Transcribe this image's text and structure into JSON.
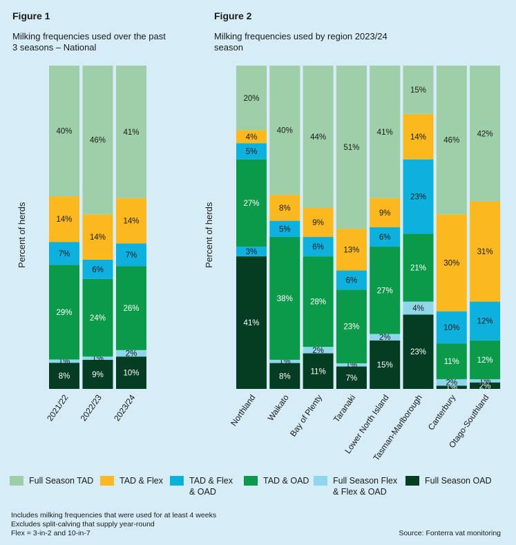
{
  "figure1": {
    "label": "Figure 1",
    "subtitle_line1": "Milking frequencies used over the past",
    "subtitle_line2": "3 seasons – National",
    "ylabel": "Percent of herds"
  },
  "figure2": {
    "label": "Figure 2",
    "subtitle_line1": "Milking frequencies used by region 2023/24",
    "subtitle_line2": "season",
    "ylabel": "Percent of herds"
  },
  "series_colors": {
    "Full Season TAD": "#9ecfa8",
    "TAD & Flex": "#fbb81f",
    "TAD & Flex & OAD": "#0cb1de",
    "TAD & OAD": "#0b9a4a",
    "Full Season Flex & Flex & OAD": "#8fd6ea",
    "Full Season OAD": "#043d22"
  },
  "legend": [
    {
      "key": "Full Season TAD",
      "line1": "Full Season TAD",
      "line2": ""
    },
    {
      "key": "TAD & Flex",
      "line1": "TAD & Flex",
      "line2": ""
    },
    {
      "key": "TAD & Flex & OAD",
      "line1": "TAD & Flex",
      "line2": "& OAD"
    },
    {
      "key": "TAD & OAD",
      "line1": "TAD & OAD",
      "line2": ""
    },
    {
      "key": "Full Season Flex & Flex & OAD",
      "line1": "Full Season Flex",
      "line2": "& Flex & OAD"
    },
    {
      "key": "Full Season OAD",
      "line1": "Full Season OAD",
      "line2": ""
    }
  ],
  "notes": {
    "line1": "Includes milking frequencies that were used for at least 4 weeks",
    "line2": "Excludes split-calving that supply year-round",
    "line3": "Flex = 3-in-2 and 10-in-7"
  },
  "source": "Source: Fonterra vat monitoring",
  "chart_data": [
    {
      "type": "bar",
      "stacked": true,
      "title": "Milking frequencies used over the past 3 seasons – National",
      "xlabel": "",
      "ylabel": "Percent of herds",
      "ylim": [
        0,
        100
      ],
      "categories": [
        "2021/22",
        "2022/23",
        "2023/24"
      ],
      "series": [
        {
          "name": "Full Season OAD",
          "values": [
            8,
            9,
            10
          ]
        },
        {
          "name": "Full Season Flex & Flex & OAD",
          "values": [
            1,
            1,
            2
          ]
        },
        {
          "name": "TAD & OAD",
          "values": [
            29,
            24,
            26
          ]
        },
        {
          "name": "TAD & Flex & OAD",
          "values": [
            7,
            6,
            7
          ]
        },
        {
          "name": "TAD & Flex",
          "values": [
            14,
            14,
            14
          ]
        },
        {
          "name": "Full Season TAD",
          "values": [
            40,
            46,
            41
          ]
        }
      ]
    },
    {
      "type": "bar",
      "stacked": true,
      "title": "Milking frequencies used by region 2023/24 season",
      "xlabel": "",
      "ylabel": "Percent of herds",
      "ylim": [
        0,
        100
      ],
      "categories": [
        "Northland",
        "Waikato",
        "Bay of Plenty",
        "Taranaki",
        "Lower North Island",
        "Tasman-Marlborough",
        "Canterbury",
        "Otago-Southland"
      ],
      "series": [
        {
          "name": "Full Season OAD",
          "values": [
            41,
            8,
            11,
            7,
            15,
            23,
            1,
            2
          ]
        },
        {
          "name": "Full Season Flex & Flex & OAD",
          "values": [
            0,
            1,
            2,
            1,
            2,
            4,
            2,
            1
          ]
        },
        {
          "name": "TAD & OAD",
          "values": [
            27,
            38,
            28,
            23,
            27,
            21,
            11,
            12
          ]
        },
        {
          "name": "TAD & Flex & OAD",
          "values": [
            5,
            5,
            6,
            6,
            6,
            23,
            10,
            12
          ]
        },
        {
          "name": "TAD & Flex",
          "values": [
            4,
            8,
            9,
            13,
            9,
            14,
            30,
            31
          ]
        },
        {
          "name": "Full Season TAD",
          "values": [
            20,
            40,
            44,
            51,
            41,
            15,
            46,
            42
          ]
        }
      ],
      "extra_segments": [
        {
          "category": "Northland",
          "after_series": "Full Season OAD",
          "value": 3,
          "color_key": "TAD & Flex & OAD"
        }
      ]
    }
  ]
}
